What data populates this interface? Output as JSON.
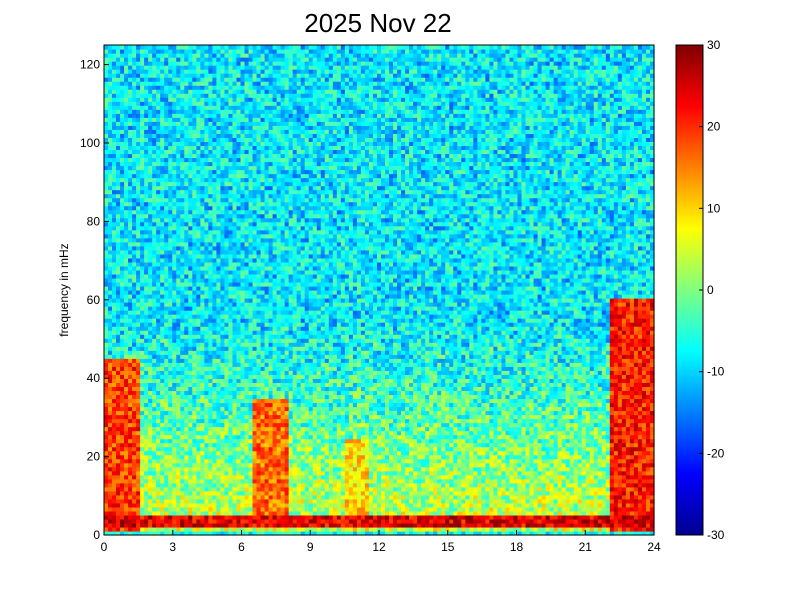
{
  "chart_data": {
    "type": "heatmap",
    "title": "2025 Nov 22",
    "xlabel": "",
    "ylabel": "frequency in mHz",
    "x_range": [
      0,
      24
    ],
    "y_range": [
      0,
      125
    ],
    "x_ticks": [
      "0",
      "3",
      "6",
      "9",
      "12",
      "15",
      "18",
      "21",
      "24"
    ],
    "y_ticks": [
      "0",
      "20",
      "40",
      "60",
      "80",
      "100",
      "120"
    ],
    "colorbar": {
      "range": [
        -30,
        30
      ],
      "ticks": [
        "30",
        "20",
        "10",
        "0",
        "-10",
        "-20",
        "-30"
      ],
      "colormap": "jet"
    },
    "grid": false,
    "description_regions": [
      {
        "x_hours": [
          0,
          1.5
        ],
        "y_mhz": [
          0,
          45
        ],
        "level": 25
      },
      {
        "x_hours": [
          6.5,
          8
        ],
        "y_mhz": [
          5,
          35
        ],
        "level": 22
      },
      {
        "x_hours": [
          10.5,
          11.5
        ],
        "y_mhz": [
          5,
          25
        ],
        "level": 15
      },
      {
        "x_hours": [
          22,
          24
        ],
        "y_mhz": [
          0,
          60
        ],
        "level": 27
      },
      {
        "x_hours": [
          0,
          24
        ],
        "y_mhz": [
          2,
          5
        ],
        "level": 30
      },
      {
        "x_hours": [
          0,
          24
        ],
        "y_mhz": [
          40,
          125
        ],
        "level": -8
      }
    ]
  }
}
